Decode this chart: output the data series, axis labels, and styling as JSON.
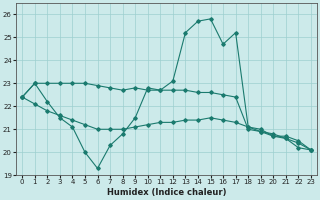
{
  "xlabel": "Humidex (Indice chaleur)",
  "background_color": "#cceaea",
  "line_color": "#1a7a6e",
  "xlim": [
    -0.5,
    23.5
  ],
  "ylim": [
    19,
    26.5
  ],
  "yticks": [
    19,
    20,
    21,
    22,
    23,
    24,
    25,
    26
  ],
  "xticks": [
    0,
    1,
    2,
    3,
    4,
    5,
    6,
    7,
    8,
    9,
    10,
    11,
    12,
    13,
    14,
    15,
    16,
    17,
    18,
    19,
    20,
    21,
    22,
    23
  ],
  "curve1_x": [
    0,
    1,
    2,
    3,
    4,
    5,
    6,
    7,
    8,
    9,
    10,
    11,
    12,
    13,
    14,
    15,
    16,
    17,
    18,
    19,
    20,
    21,
    22,
    23
  ],
  "curve1_y": [
    22.4,
    23.0,
    22.2,
    21.5,
    21.1,
    20.0,
    19.3,
    20.3,
    20.8,
    21.5,
    22.8,
    22.7,
    23.1,
    25.2,
    25.7,
    25.8,
    24.7,
    25.2,
    21.1,
    21.0,
    20.7,
    20.6,
    20.2,
    20.1
  ],
  "curve2_x": [
    0,
    1,
    2,
    3,
    4,
    5,
    6,
    7,
    8,
    9,
    10,
    11,
    12,
    13,
    14,
    15,
    16,
    17,
    18,
    19,
    20,
    21,
    22,
    23
  ],
  "curve2_y": [
    22.4,
    23.0,
    23.0,
    23.0,
    23.0,
    23.0,
    22.9,
    22.8,
    22.7,
    22.8,
    22.7,
    22.7,
    22.7,
    22.7,
    22.6,
    22.6,
    22.5,
    22.4,
    21.0,
    20.9,
    20.7,
    20.7,
    20.5,
    20.1
  ],
  "curve3_x": [
    0,
    1,
    2,
    3,
    4,
    5,
    6,
    7,
    8,
    9,
    10,
    11,
    12,
    13,
    14,
    15,
    16,
    17,
    18,
    19,
    20,
    21,
    22,
    23
  ],
  "curve3_y": [
    22.4,
    22.1,
    21.8,
    21.6,
    21.4,
    21.2,
    21.0,
    21.0,
    21.0,
    21.1,
    21.2,
    21.3,
    21.3,
    21.4,
    21.4,
    21.5,
    21.4,
    21.3,
    21.1,
    20.9,
    20.8,
    20.6,
    20.4,
    20.1
  ]
}
